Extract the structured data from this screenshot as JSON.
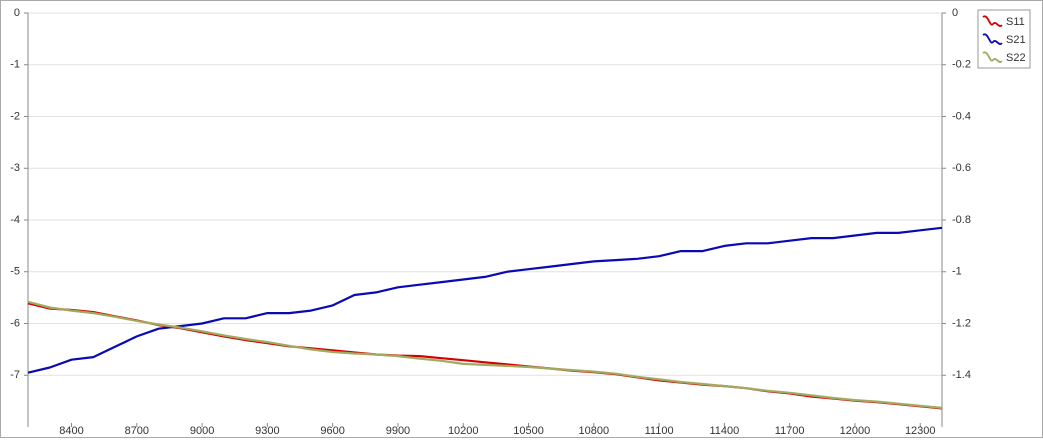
{
  "chart_data": {
    "type": "line",
    "x": [
      8200,
      8300,
      8400,
      8500,
      8600,
      8700,
      8800,
      8900,
      9000,
      9100,
      9200,
      9300,
      9400,
      9500,
      9600,
      9700,
      9800,
      9900,
      10000,
      10100,
      10200,
      10300,
      10400,
      10500,
      10600,
      10700,
      10800,
      10900,
      11000,
      11100,
      11200,
      11300,
      11400,
      11500,
      11600,
      11700,
      11800,
      11900,
      12000,
      12100,
      12200,
      12300,
      12400
    ],
    "series": [
      {
        "name": "S11",
        "color": "#d40000",
        "values": [
          -5.61,
          -5.71,
          -5.74,
          -5.78,
          -5.86,
          -5.94,
          -6.03,
          -6.09,
          -6.17,
          -6.25,
          -6.32,
          -6.38,
          -6.44,
          -6.48,
          -6.52,
          -6.56,
          -6.6,
          -6.62,
          -6.63,
          -6.67,
          -6.71,
          -6.75,
          -6.79,
          -6.83,
          -6.87,
          -6.91,
          -6.94,
          -6.98,
          -7.04,
          -7.1,
          -7.14,
          -7.18,
          -7.21,
          -7.25,
          -7.31,
          -7.35,
          -7.41,
          -7.45,
          -7.49,
          -7.52,
          -7.56,
          -7.6,
          -7.64
        ]
      },
      {
        "name": "S21",
        "color": "#0a0ab4",
        "axis": "y2",
        "values": [
          -1.39,
          -1.37,
          -1.34,
          -1.33,
          -1.29,
          -1.25,
          -1.22,
          -1.21,
          -1.2,
          -1.18,
          -1.18,
          -1.16,
          -1.16,
          -1.15,
          -1.13,
          -1.09,
          -1.08,
          -1.06,
          -1.05,
          -1.04,
          -1.03,
          -1.02,
          -1.0,
          -0.99,
          -0.98,
          -0.97,
          -0.96,
          -0.955,
          -0.95,
          -0.94,
          -0.92,
          -0.92,
          -0.9,
          -0.89,
          -0.89,
          -0.88,
          -0.87,
          -0.87,
          -0.86,
          -0.85,
          -0.85,
          -0.84,
          -0.83
        ]
      },
      {
        "name": "S22",
        "color": "#a0aa60",
        "values": [
          -5.58,
          -5.69,
          -5.75,
          -5.8,
          -5.87,
          -5.95,
          -6.02,
          -6.08,
          -6.15,
          -6.23,
          -6.3,
          -6.36,
          -6.43,
          -6.5,
          -6.55,
          -6.58,
          -6.6,
          -6.63,
          -6.68,
          -6.72,
          -6.78,
          -6.8,
          -6.82,
          -6.84,
          -6.87,
          -6.9,
          -6.93,
          -6.97,
          -7.03,
          -7.08,
          -7.13,
          -7.17,
          -7.21,
          -7.25,
          -7.3,
          -7.34,
          -7.39,
          -7.44,
          -7.48,
          -7.51,
          -7.55,
          -7.59,
          -7.63
        ]
      }
    ],
    "xlim": [
      8200,
      12400
    ],
    "xticks": [
      8400,
      8700,
      9000,
      9300,
      9600,
      9900,
      10200,
      10500,
      10800,
      11100,
      11400,
      11700,
      12000,
      12300
    ],
    "ylim": [
      -8,
      0
    ],
    "yticks": [
      0,
      -1,
      -2,
      -3,
      -4,
      -5,
      -6,
      -7
    ],
    "y2lim": [
      -1.6,
      0
    ],
    "y2ticks": [
      0,
      -0.2,
      -0.4,
      -0.6,
      -0.8,
      -1,
      -1.2,
      -1.4
    ],
    "grid": true,
    "legend": "top-right"
  }
}
